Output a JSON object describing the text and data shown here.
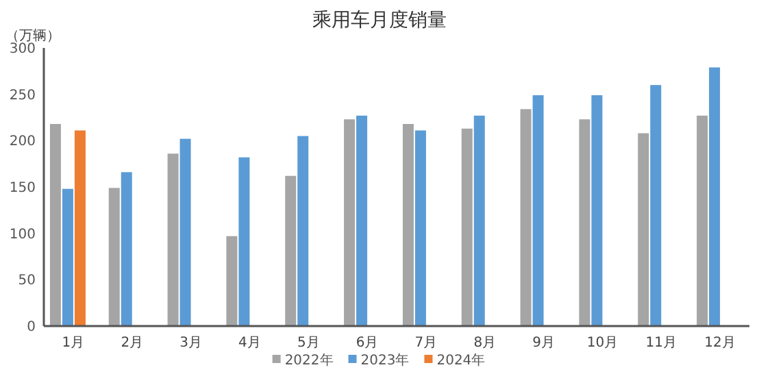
{
  "chart_data": {
    "type": "bar",
    "title": "乘用车月度销量",
    "ylabel": "（万辆）",
    "categories": [
      "1月",
      "2月",
      "3月",
      "4月",
      "5月",
      "6月",
      "7月",
      "8月",
      "9月",
      "10月",
      "11月",
      "12月"
    ],
    "series": [
      {
        "name": "2022年",
        "color": "#a5a5a5",
        "values": [
          218,
          149,
          186,
          97,
          162,
          223,
          218,
          213,
          234,
          223,
          208,
          227
        ]
      },
      {
        "name": "2023年",
        "color": "#5b9bd5",
        "values": [
          148,
          166,
          202,
          182,
          205,
          227,
          211,
          227,
          249,
          249,
          260,
          279
        ]
      },
      {
        "name": "2024年",
        "color": "#ed7d31",
        "values": [
          211,
          null,
          null,
          null,
          null,
          null,
          null,
          null,
          null,
          null,
          null,
          null
        ]
      }
    ],
    "ylim": [
      0,
      300
    ],
    "yticks": [
      0,
      50,
      100,
      150,
      200,
      250,
      300
    ],
    "grid": false,
    "legend": "bottom"
  }
}
